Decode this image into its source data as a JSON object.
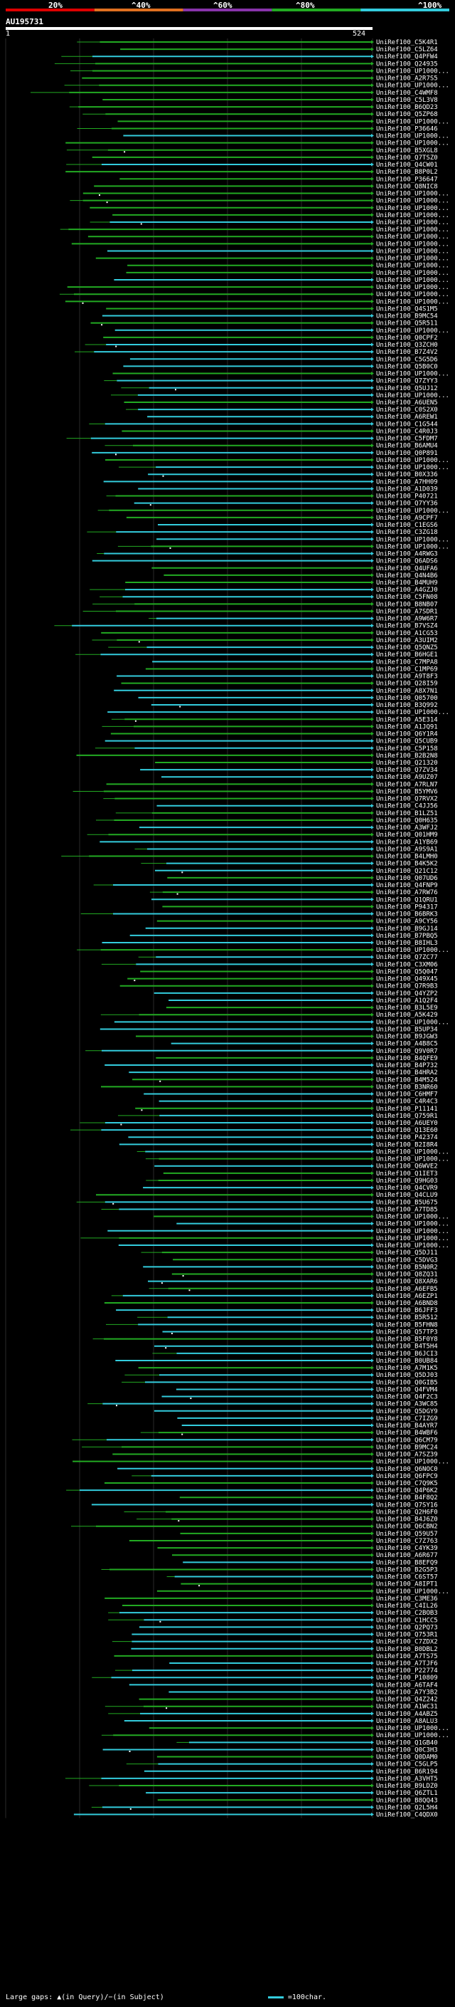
{
  "header": {
    "percent_labels": [
      "20%",
      "^40%",
      "^60%",
      "^80%",
      "^100%"
    ],
    "query_name": "AU195731",
    "query_start": "1",
    "query_end": "524"
  },
  "colors": {
    "legend": [
      "#dd0000",
      "#e07020",
      "#8833aa",
      "#22aa22",
      "#33ccdd"
    ],
    "high_identity": "#33ccdd",
    "mid_identity": "#22aa22"
  },
  "hits": [
    "UniRef100_C5K4R1",
    "UniRef100_C5LZ64",
    "UniRef100_Q4PFW4",
    "UniRef100_Q24935",
    "UniRef100_UP1000...",
    "UniRef100_A2R7S5",
    "UniRef100_UP1000...",
    "UniRef100_C4WMF8",
    "UniRef100_C5L3V8",
    "UniRef100_B6QD23",
    "UniRef100_Q5ZP68",
    "UniRef100_UP1000...",
    "UniRef100_P36646",
    "UniRef100_UP1000...",
    "UniRef100_UP1000...",
    "UniRef100_B5XGL8",
    "UniRef100_Q7TSZ0",
    "UniRef100_Q4CW01",
    "UniRef100_B8P0L2",
    "UniRef100_P36647",
    "UniRef100_Q8NIC8",
    "UniRef100_UP1000...",
    "UniRef100_UP1000...",
    "UniRef100_UP1000...",
    "UniRef100_UP1000...",
    "UniRef100_UP1000...",
    "UniRef100_UP1000...",
    "UniRef100_UP1000...",
    "UniRef100_UP1000...",
    "UniRef100_UP1000...",
    "UniRef100_UP1000...",
    "UniRef100_UP1000...",
    "UniRef100_UP1000...",
    "UniRef100_UP1000...",
    "UniRef100_UP1000...",
    "UniRef100_UP1000...",
    "UniRef100_UP1000...",
    "UniRef100_Q4S1M5",
    "UniRef100_B9MC54",
    "UniRef100_Q5R511",
    "UniRef100_UP1000...",
    "UniRef100_Q0CPF2",
    "UniRef100_Q3ZCH0",
    "UniRef100_B7Z4V2",
    "UniRef100_C5G5D6",
    "UniRef100_Q5B0C0",
    "UniRef100_UP1000...",
    "UniRef100_Q7ZYY3",
    "UniRef100_Q5UJ12",
    "UniRef100_UP1000...",
    "UniRef100_A6UEN5",
    "UniRef100_C0S2X0",
    "UniRef100_A6REW1",
    "UniRef100_C1G544",
    "UniRef100_C4R0J3",
    "UniRef100_C5FDM7",
    "UniRef100_B6AMU4",
    "UniRef100_Q0P891",
    "UniRef100_UP1000...",
    "UniRef100_UP1000...",
    "UniRef100_B0X336",
    "UniRef100_A7HH09",
    "UniRef100_A1D039",
    "UniRef100_P40721",
    "UniRef100_Q7YY36",
    "UniRef100_UP1000...",
    "UniRef100_A9CPF7",
    "UniRef100_C1EGS6",
    "UniRef100_C3ZG18",
    "UniRef100_UP1000...",
    "UniRef100_UP1000...",
    "UniRef100_A4RWG3",
    "UniRef100_Q6ADS6",
    "UniRef100_Q4UFA6",
    "UniRef100_Q4N4B6",
    "UniRef100_B4MUH9",
    "UniRef100_A4GZJ0",
    "UniRef100_C5FN08",
    "UniRef100_B8NB07",
    "UniRef100_A7SDR1",
    "UniRef100_A9W6R7",
    "UniRef100_B7VSZ4",
    "UniRef100_A1CG53",
    "UniRef100_A3UIM2",
    "UniRef100_Q5QNZ5",
    "UniRef100_B6HGE1",
    "UniRef100_C7MPA8",
    "UniRef100_C1MP69",
    "UniRef100_A9T8F3",
    "UniRef100_Q28I59",
    "UniRef100_A8X7N1",
    "UniRef100_Q05700",
    "UniRef100_B3Q992",
    "UniRef100_UP1000...",
    "UniRef100_A5E314",
    "UniRef100_A1JQ91",
    "UniRef100_Q6Y1R4",
    "UniRef100_Q5CUB9",
    "UniRef100_C5P158",
    "UniRef100_B2B2N8",
    "UniRef100_Q21320",
    "UniRef100_Q7ZV34",
    "UniRef100_A9UZ07",
    "UniRef100_A7RLN7",
    "UniRef100_B5YMV6",
    "UniRef100_Q7RVX2",
    "UniRef100_C4JJ56",
    "UniRef100_B1LZ51",
    "UniRef100_Q0H635",
    "UniRef100_A3WFJ2",
    "UniRef100_Q01HM9",
    "UniRef100_A1YB69",
    "UniRef100_A9S9A1",
    "UniRef100_B4LMH0",
    "UniRef100_B4K5K2",
    "UniRef100_Q21C12",
    "UniRef100_Q07UD6",
    "UniRef100_Q4FNP9",
    "UniRef100_A7RW76",
    "UniRef100_Q1QRU1",
    "UniRef100_P94317",
    "UniRef100_B6BRK3",
    "UniRef100_A9CY56",
    "UniRef100_B9GJ14",
    "UniRef100_B7PBQ5",
    "UniRef100_B8IHL3",
    "UniRef100_UP1000...",
    "UniRef100_Q7ZC77",
    "UniRef100_C3XM06",
    "UniRef100_Q5Q047",
    "UniRef100_Q49X45",
    "UniRef100_Q7R9B3",
    "UniRef100_Q4YZP2",
    "UniRef100_A1Q2F4",
    "UniRef100_B3L5E9",
    "UniRef100_A5K429",
    "UniRef100_UP1000...",
    "UniRef100_B5UP34",
    "UniRef100_B9JGW3",
    "UniRef100_A4B8C5",
    "UniRef100_Q9V0R7",
    "UniRef100_B4QFE9",
    "UniRef100_B4P732",
    "UniRef100_B4HRA2",
    "UniRef100_B4M524",
    "UniRef100_B3NR60",
    "UniRef100_C6HMF7",
    "UniRef100_C4R4C3",
    "UniRef100_P11141",
    "UniRef100_Q759R1",
    "UniRef100_A6UEY0",
    "UniRef100_Q13E60",
    "UniRef100_P42374",
    "UniRef100_B2I8R4",
    "UniRef100_UP1000...",
    "UniRef100_UP1000...",
    "UniRef100_Q6WVE2",
    "UniRef100_Q1IET3",
    "UniRef100_Q9HG03",
    "UniRef100_Q4CVR9",
    "UniRef100_Q4CLU9",
    "UniRef100_B5U675",
    "UniRef100_A7TD85",
    "UniRef100_UP1000...",
    "UniRef100_UP1000...",
    "UniRef100_UP1000...",
    "UniRef100_UP1000...",
    "UniRef100_UP1000...",
    "UniRef100_Q5DJ11",
    "UniRef100_C5DVG3",
    "UniRef100_B5N0R2",
    "UniRef100_Q8ZQ31",
    "UniRef100_Q8XAR6",
    "UniRef100_A6EFB5",
    "UniRef100_A6EZP1",
    "UniRef100_A6BND8",
    "UniRef100_B6JFF3",
    "UniRef100_B5R512",
    "UniRef100_B5FHN8",
    "UniRef100_Q57TP3",
    "UniRef100_B5F0Y8",
    "UniRef100_B4T5H4",
    "UniRef100_B6JCI3",
    "UniRef100_B0UB84",
    "UniRef100_A7M1K5",
    "UniRef100_Q5DJ03",
    "UniRef100_Q0GIB5",
    "UniRef100_Q4FVM4",
    "UniRef100_Q4F2C3",
    "UniRef100_A3WC85",
    "UniRef100_Q5DGY9",
    "UniRef100_C7IZG9",
    "UniRef100_B4AYR7",
    "UniRef100_B4WBF6",
    "UniRef100_Q6CM79",
    "UniRef100_B9MC24",
    "UniRef100_A7SZ39",
    "UniRef100_UP1000...",
    "UniRef100_Q6NOC0",
    "UniRef100_Q6FPC9",
    "UniRef100_C7Q9K5",
    "UniRef100_Q4P6K2",
    "UniRef100_B4F8Q2",
    "UniRef100_Q7SY16",
    "UniRef100_Q2H6F0",
    "UniRef100_B4J6Z0",
    "UniRef100_Q6CBN2",
    "UniRef100_Q59U57",
    "UniRef100_C7Z763",
    "UniRef100_C4YK39",
    "UniRef100_A6R677",
    "UniRef100_B8EFQ9",
    "UniRef100_B2G5P3",
    "UniRef100_C6ST57",
    "UniRef100_A8IPT1",
    "UniRef100_UP1000...",
    "UniRef100_C3ME36",
    "UniRef100_C4IL26",
    "UniRef100_C2BOB3",
    "UniRef100_C1HCC5",
    "UniRef100_Q2PQ73",
    "UniRef100_Q753R1",
    "UniRef100_C7ZDX2",
    "UniRef100_B0DBL2",
    "UniRef100_A7TS75",
    "UniRef100_A7TJF6",
    "UniRef100_P22774",
    "UniRef100_P10809",
    "UniRef100_A6TAF4",
    "UniRef100_A7Y3B2",
    "UniRef100_Q4Z242",
    "UniRef100_A1WC31",
    "UniRef100_A4ABZ5",
    "UniRef100_A8ALU3",
    "UniRef100_UP1000...",
    "UniRef100_UP1000...",
    "UniRef100_Q1GB40",
    "UniRef100_Q0C3H3",
    "UniRef100_Q0DAM0",
    "UniRef100_C5GLP5",
    "UniRef100_B6R194",
    "UniRef100_A3VHT5",
    "UniRef100_B9LDZ0",
    "UniRef100_Q6ZTL1",
    "UniRef100_B8QQ43",
    "UniRef100_Q2L5H4",
    "UniRef100_C4QDX0"
  ],
  "footer": {
    "gaps_text": "Large gaps: ▲(in Query)/−(in Subject)",
    "scale_text": "=100char."
  }
}
